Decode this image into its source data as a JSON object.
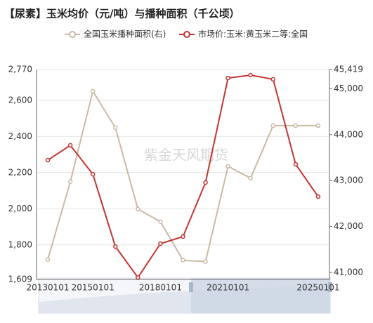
{
  "chart_data": {
    "type": "line",
    "title": "【尿素】玉米均价（元/吨）与播种面积（千公顷）",
    "watermark": "紫金天风期货",
    "categories": [
      "20130101",
      null,
      "20150101",
      null,
      null,
      "20180101",
      null,
      null,
      "20210101",
      null,
      null,
      null,
      "20250101"
    ],
    "series": [
      {
        "name": "全国玉米播种面积(右)",
        "color": "#c9b9a6",
        "axis": "y2",
        "values": [
          41281,
          42976,
          44946,
          44152,
          42380,
          42105,
          41266,
          41235,
          43312,
          43052,
          44197,
          44197,
          44197
        ]
      },
      {
        "name": "市场价:玉米:黄玉米二等:全国",
        "color": "#c23531",
        "values": [
          2269,
          2351,
          2191,
          1791,
          1620,
          1807,
          1846,
          2145,
          2723,
          2739,
          2716,
          2246,
          2067
        ]
      }
    ],
    "ylim": [
      1609,
      2770
    ],
    "yticks": [
      {
        "value": 1609,
        "label": "1,609"
      },
      {
        "value": 1800,
        "label": "1,800"
      },
      {
        "value": 2000,
        "label": "2,000"
      },
      {
        "value": 2200,
        "label": "2,200"
      },
      {
        "value": 2400,
        "label": "2,400"
      },
      {
        "value": 2600,
        "label": "2,600"
      },
      {
        "value": 2770,
        "label": "2,770"
      }
    ],
    "y2lim": [
      40847,
      45419
    ],
    "y2ticks": [
      {
        "value": 41000,
        "label": "41,000"
      },
      {
        "value": 42000,
        "label": "42,000"
      },
      {
        "value": 43000,
        "label": "43,000"
      },
      {
        "value": 44000,
        "label": "44,000"
      },
      {
        "value": 45000,
        "label": "45,000"
      },
      {
        "value": 45419,
        "label": "45,419"
      }
    ],
    "grid": true
  }
}
